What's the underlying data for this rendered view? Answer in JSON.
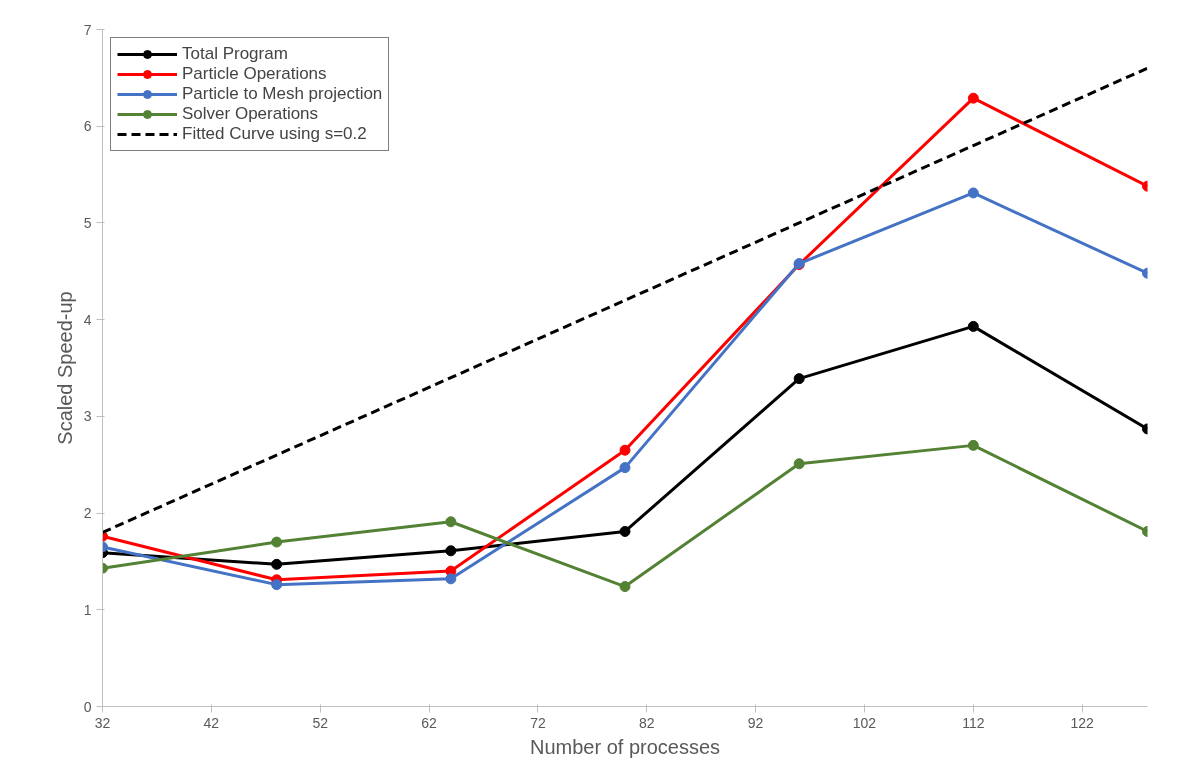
{
  "chart_data": {
    "type": "line",
    "xlabel": "Number of processes",
    "ylabel": "Scaled Speed-up",
    "x": [
      32,
      48,
      64,
      80,
      96,
      112,
      128
    ],
    "xlim": [
      32,
      128
    ],
    "xticks": [
      32,
      42,
      52,
      62,
      72,
      82,
      92,
      102,
      112,
      122
    ],
    "ylim": [
      0,
      7
    ],
    "yticks": [
      0,
      1,
      2,
      3,
      4,
      5,
      6,
      7
    ],
    "grid": false,
    "legend": "top left",
    "marker": "circle",
    "line_style": "solid",
    "series": [
      {
        "name": "Total Program",
        "color": "#000000",
        "values": [
          1.59,
          1.47,
          1.61,
          1.81,
          3.39,
          3.93,
          2.87
        ]
      },
      {
        "name": "Particle Operations",
        "color": "#ff0000",
        "values": [
          1.76,
          1.31,
          1.4,
          2.65,
          4.57,
          6.29,
          5.38
        ]
      },
      {
        "name": "Particle to Mesh projection",
        "color": "#4472c4",
        "values": [
          1.65,
          1.26,
          1.32,
          2.47,
          4.58,
          5.31,
          4.48
        ]
      },
      {
        "name": "Solver Operations",
        "color": "#548235",
        "values": [
          1.43,
          1.7,
          1.91,
          1.24,
          2.51,
          2.7,
          1.81
        ]
      },
      {
        "name": "Fitted Curve using s=0.2",
        "color": "#000000",
        "marker": "none",
        "line_style": "dashed",
        "values": [
          1.8,
          2.6,
          3.4,
          4.2,
          5.0,
          5.8,
          6.6
        ]
      }
    ]
  }
}
